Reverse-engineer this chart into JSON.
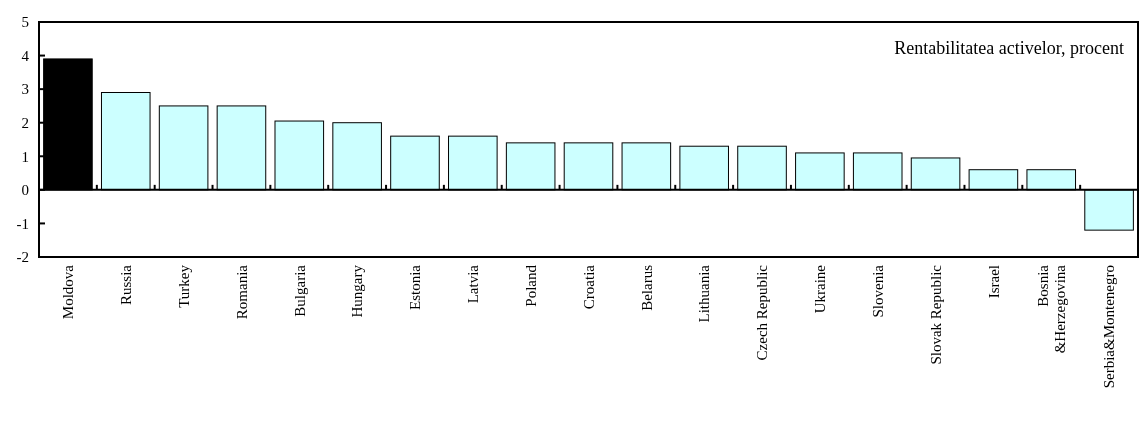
{
  "chart_data": {
    "type": "bar",
    "title": "Rentabilitatea activelor, procent",
    "categories": [
      "Moldova",
      "Russia",
      "Turkey",
      "Romania",
      "Bulgaria",
      "Hungary",
      "Estonia",
      "Latvia",
      "Poland",
      "Croatia",
      "Belarus",
      "Lithuania",
      "Czech Republic",
      "Ukraine",
      "Slovenia",
      "Slovak Republic",
      "Israel",
      "Bosnia\n&Herzegovina",
      "Serbia&Montenegro"
    ],
    "values": [
      3.9,
      2.9,
      2.5,
      2.5,
      2.05,
      2.0,
      1.6,
      1.6,
      1.4,
      1.4,
      1.4,
      1.3,
      1.3,
      1.1,
      1.1,
      0.95,
      0.6,
      0.6,
      -1.2
    ],
    "colors": [
      "#000000",
      "#ccffff",
      "#ccffff",
      "#ccffff",
      "#ccffff",
      "#ccffff",
      "#ccffff",
      "#ccffff",
      "#ccffff",
      "#ccffff",
      "#ccffff",
      "#ccffff",
      "#ccffff",
      "#ccffff",
      "#ccffff",
      "#ccffff",
      "#ccffff",
      "#ccffff",
      "#ccffff"
    ],
    "ylim": [
      -2,
      5
    ],
    "yticks": [
      -2,
      -1,
      0,
      1,
      2,
      3,
      4,
      5
    ]
  }
}
